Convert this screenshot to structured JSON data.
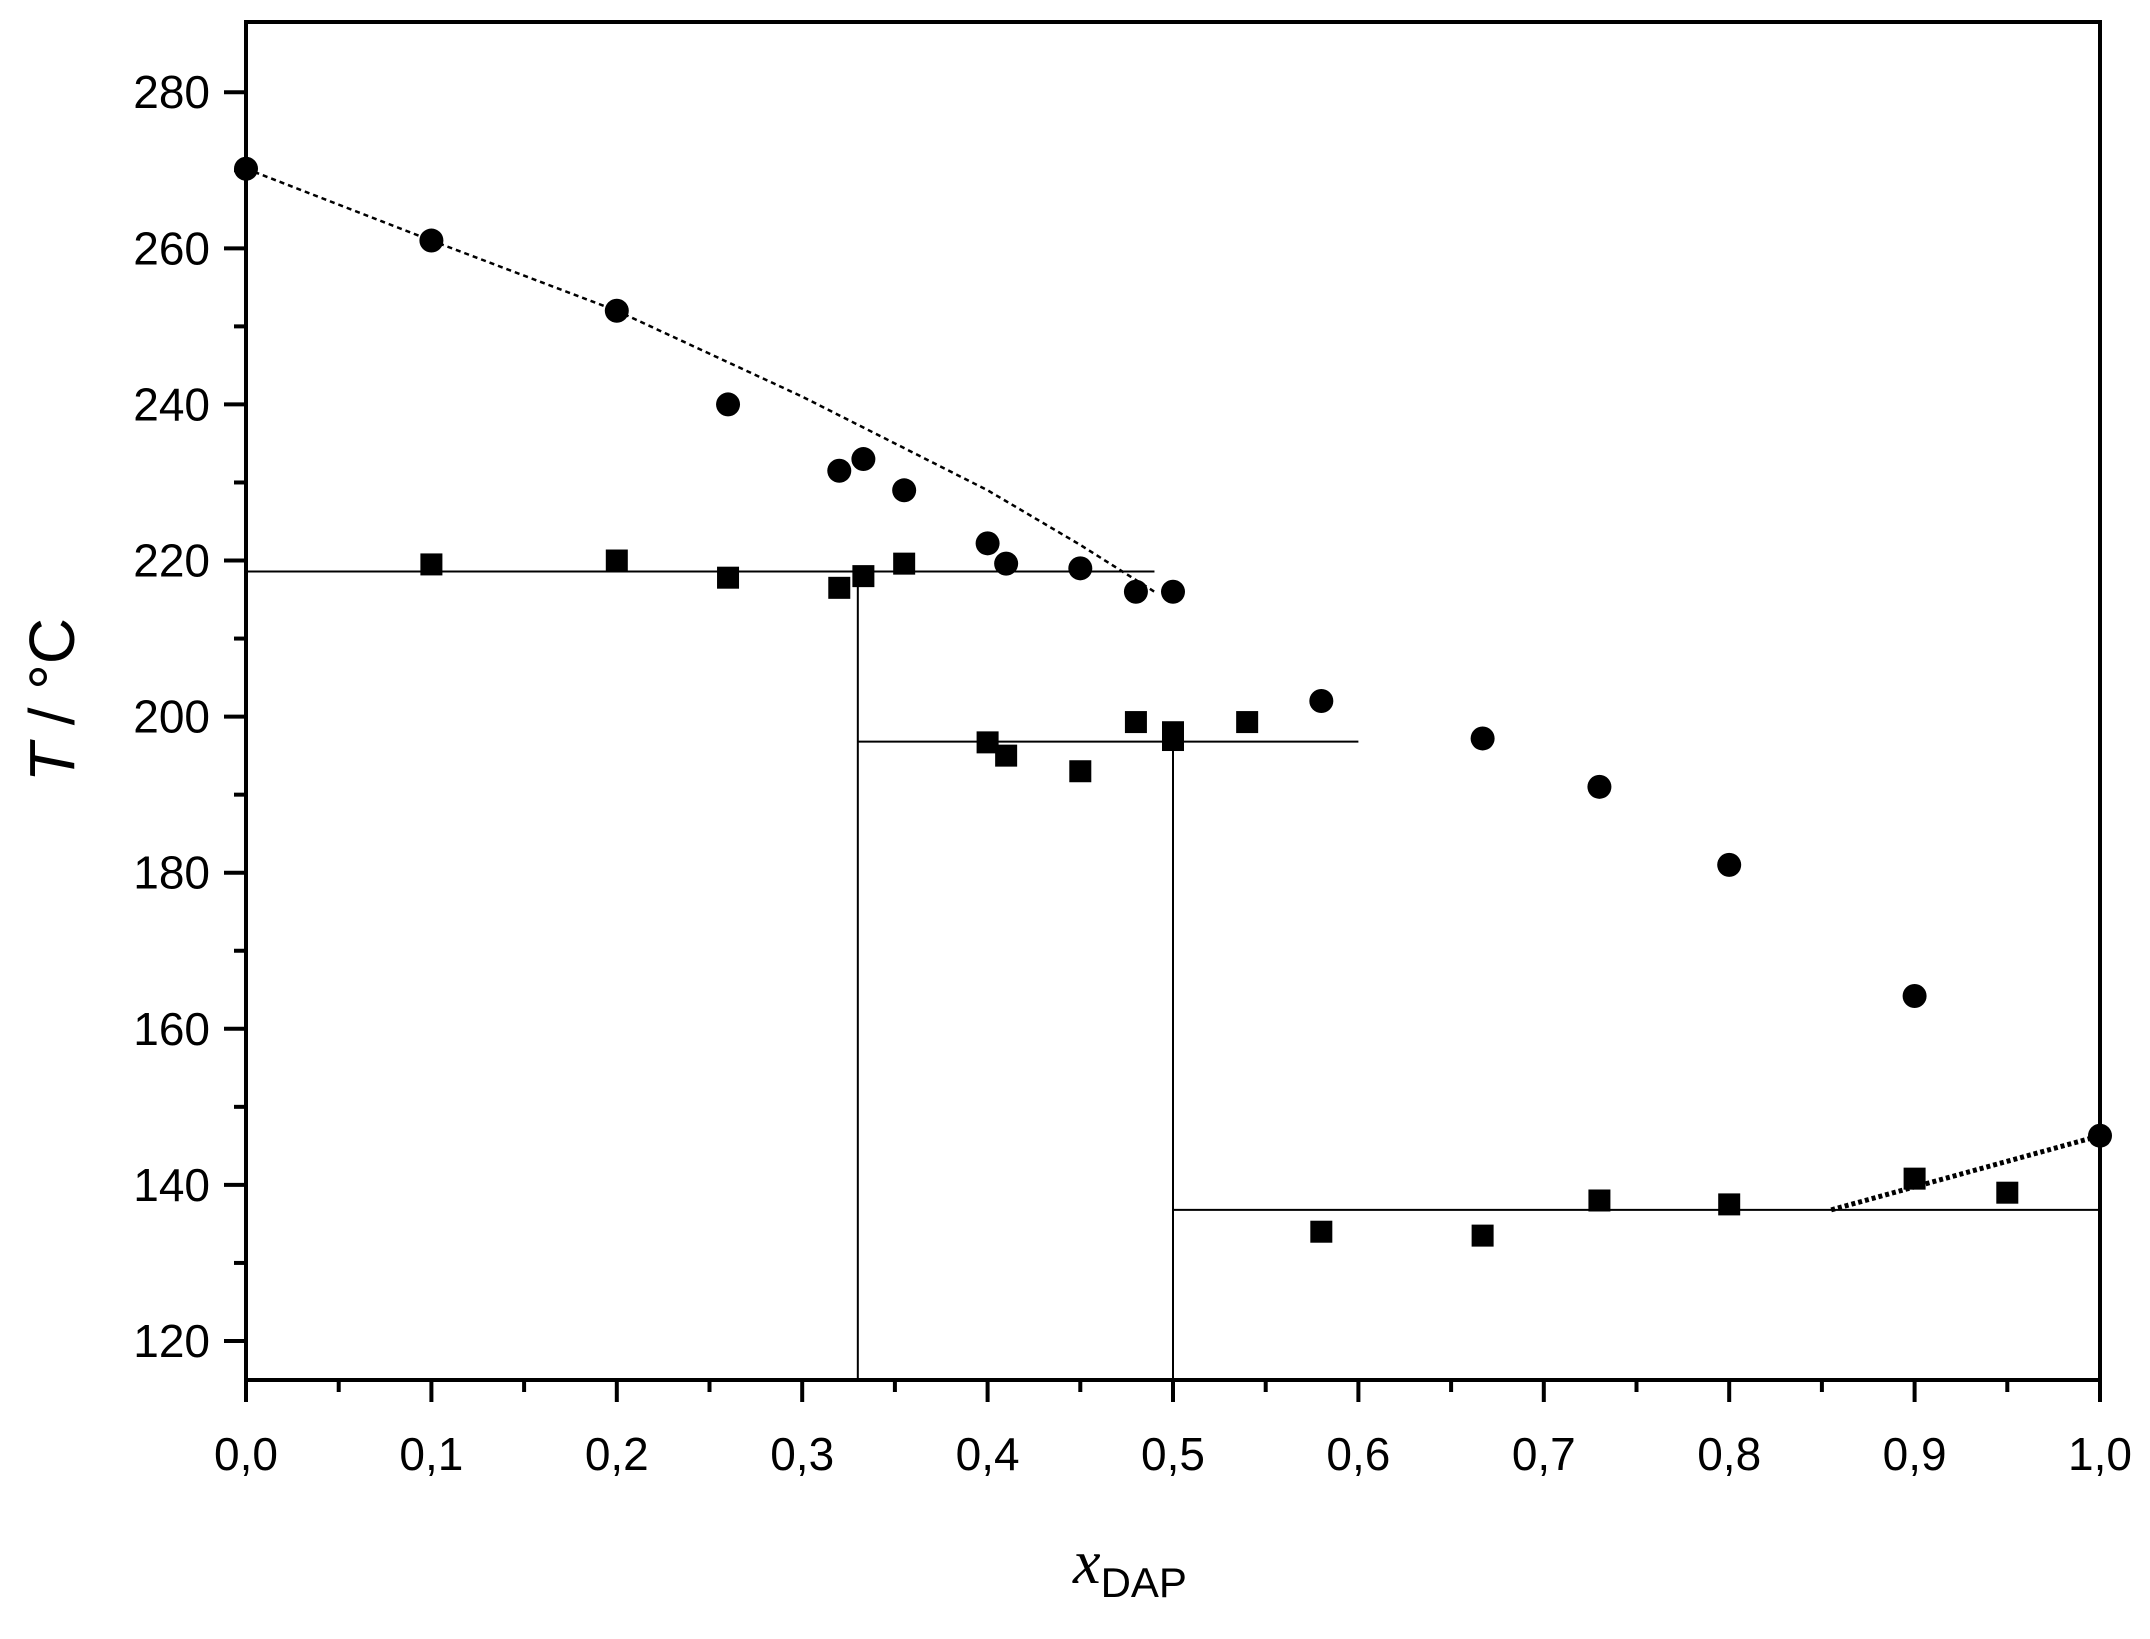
{
  "chart_data": {
    "type": "scatter",
    "xlabel": "x",
    "xlabel_sub": "DAP",
    "ylabel_var": "T",
    "ylabel_unit": " / °C",
    "xlim": [
      0.0,
      1.0
    ],
    "ylim": [
      115,
      289
    ],
    "xticks": [
      0.0,
      0.1,
      0.2,
      0.3,
      0.4,
      0.5,
      0.6,
      0.7,
      0.8,
      0.9,
      1.0
    ],
    "xtick_labels": [
      "0,0",
      "0,1",
      "0,2",
      "0,3",
      "0,4",
      "0,5",
      "0,6",
      "0,7",
      "0,8",
      "0,9",
      "1,0"
    ],
    "yticks": [
      120,
      140,
      160,
      180,
      200,
      220,
      240,
      260,
      280
    ],
    "ytick_labels": [
      "120",
      "140",
      "160",
      "180",
      "200",
      "220",
      "240",
      "260",
      "280"
    ],
    "grid": false,
    "legend": "none",
    "color": "#000000",
    "series": [
      {
        "marker": "circle",
        "points": [
          [
            0.0,
            270.2
          ],
          [
            0.1,
            261.0
          ],
          [
            0.2,
            252.0
          ],
          [
            0.26,
            240.0
          ],
          [
            0.32,
            231.5
          ],
          [
            0.333,
            233.0
          ],
          [
            0.355,
            229.0
          ],
          [
            0.4,
            222.2
          ],
          [
            0.41,
            219.6
          ],
          [
            0.45,
            219.0
          ],
          [
            0.48,
            216.0
          ],
          [
            0.5,
            216.0
          ],
          [
            0.58,
            202.0
          ],
          [
            0.667,
            197.2
          ],
          [
            0.73,
            191.0
          ],
          [
            0.8,
            181.0
          ],
          [
            0.9,
            164.2
          ],
          [
            1.0,
            146.3
          ]
        ]
      },
      {
        "marker": "square",
        "points": [
          [
            0.1,
            219.5
          ],
          [
            0.2,
            220.0
          ],
          [
            0.26,
            217.8
          ],
          [
            0.32,
            216.5
          ],
          [
            0.333,
            218.0
          ],
          [
            0.355,
            219.6
          ],
          [
            0.4,
            196.7
          ],
          [
            0.41,
            195.0
          ],
          [
            0.45,
            193.0
          ],
          [
            0.48,
            199.3
          ],
          [
            0.5,
            198.0
          ],
          [
            0.5,
            197.0
          ],
          [
            0.54,
            199.3
          ],
          [
            0.58,
            134.0
          ],
          [
            0.667,
            133.5
          ],
          [
            0.73,
            138.0
          ],
          [
            0.8,
            137.5
          ],
          [
            0.9,
            140.8
          ],
          [
            0.95,
            139.0
          ]
        ]
      }
    ],
    "lines": [
      {
        "style": "solid",
        "points": [
          [
            0.0,
            218.6
          ],
          [
            0.49,
            218.6
          ]
        ]
      },
      {
        "style": "solid",
        "points": [
          [
            0.33,
            196.8
          ],
          [
            0.6,
            196.8
          ]
        ]
      },
      {
        "style": "solid",
        "points": [
          [
            0.5,
            136.8
          ],
          [
            1.0,
            136.8
          ]
        ]
      },
      {
        "style": "solid",
        "points": [
          [
            0.33,
            115
          ],
          [
            0.33,
            218.6
          ]
        ]
      },
      {
        "style": "solid",
        "points": [
          [
            0.5,
            115
          ],
          [
            0.5,
            196.8
          ]
        ]
      },
      {
        "style": "dotted",
        "points": [
          [
            0.0,
            270.2
          ],
          [
            0.1,
            261.0
          ],
          [
            0.2,
            252.0
          ],
          [
            0.3,
            241.0
          ],
          [
            0.4,
            229.0
          ],
          [
            0.45,
            222.0
          ],
          [
            0.49,
            216.0
          ]
        ]
      },
      {
        "style": "dotted-bold",
        "points": [
          [
            0.855,
            136.8
          ],
          [
            1.0,
            146.3
          ]
        ]
      }
    ]
  }
}
